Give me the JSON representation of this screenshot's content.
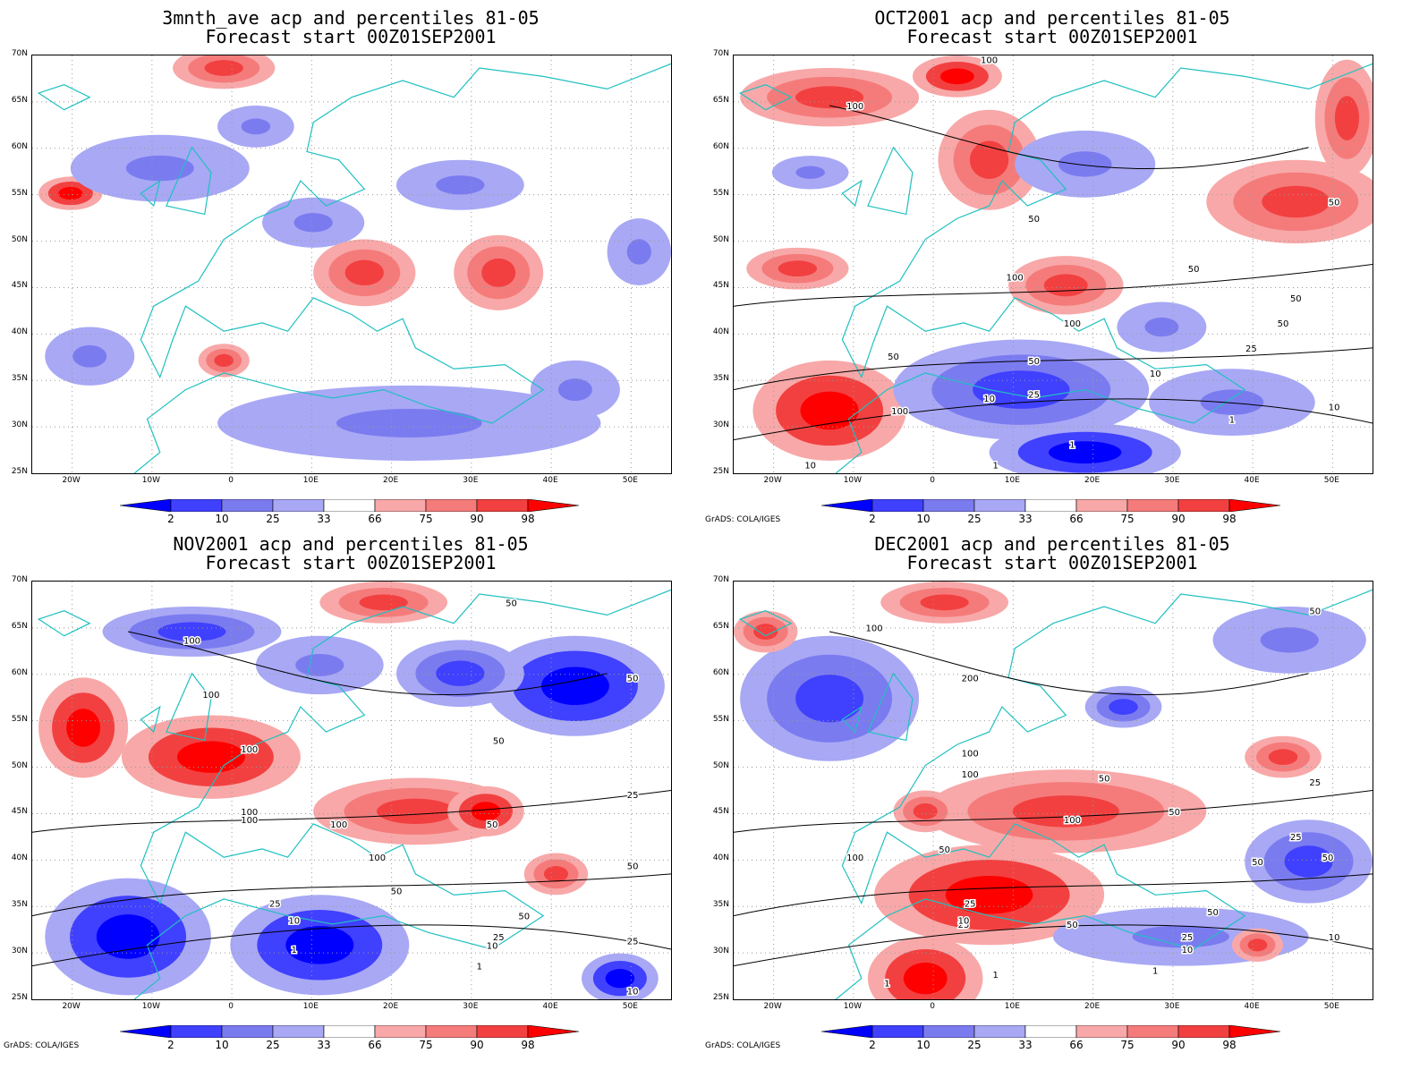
{
  "panels": [
    {
      "title_line1": "3mnth_ave acp and percentiles 81-05",
      "title_line2": "Forecast start 00Z01SEP2001",
      "credit": ""
    },
    {
      "title_line1": "OCT2001 acp and percentiles 81-05",
      "title_line2": "Forecast start 00Z01SEP2001",
      "credit": "GrADS: COLA/IGES"
    },
    {
      "title_line1": "NOV2001 acp and percentiles 81-05",
      "title_line2": "Forecast start 00Z01SEP2001",
      "credit": "GrADS: COLA/IGES"
    },
    {
      "title_line1": "DEC2001 acp and percentiles 81-05",
      "title_line2": "Forecast start 00Z01SEP2001",
      "credit": "GrADS: COLA/IGES"
    }
  ],
  "lat_labels": [
    "70N",
    "65N",
    "60N",
    "55N",
    "50N",
    "45N",
    "40N",
    "35N",
    "30N",
    "25N"
  ],
  "lon_labels": [
    "20W",
    "10W",
    "0",
    "10E",
    "20E",
    "30E",
    "40E",
    "50E"
  ],
  "colorbar_labels": [
    "2",
    "10",
    "25",
    "33",
    "66",
    "75",
    "90",
    "98"
  ],
  "colorbar_colors": [
    "#0000ff",
    "#4040ff",
    "#7b7bf0",
    "#a8a8f5",
    "#ffffff",
    "#f8a8a8",
    "#f57b7b",
    "#f24040",
    "#ff0000"
  ],
  "contour_labels": {
    "oct": [
      "100",
      "100",
      "50",
      "100",
      "100",
      "50",
      "50",
      "50",
      "25",
      "10",
      "25",
      "10",
      "1",
      "1",
      "1",
      "10",
      "50",
      "50",
      "50",
      "10",
      "100"
    ],
    "nov": [
      "100",
      "100",
      "100",
      "100",
      "100",
      "50",
      "50",
      "100",
      "100",
      "50",
      "50",
      "50",
      "25",
      "10",
      "1",
      "25",
      "10",
      "1",
      "50",
      "25",
      "10",
      "25",
      "50"
    ],
    "dec": [
      "100",
      "200",
      "100",
      "100",
      "50",
      "50",
      "50",
      "100",
      "100",
      "50",
      "25",
      "25",
      "10",
      "25",
      "10",
      "1",
      "1",
      "1",
      "50",
      "50",
      "50",
      "25",
      "10",
      "25",
      "50"
    ]
  }
}
